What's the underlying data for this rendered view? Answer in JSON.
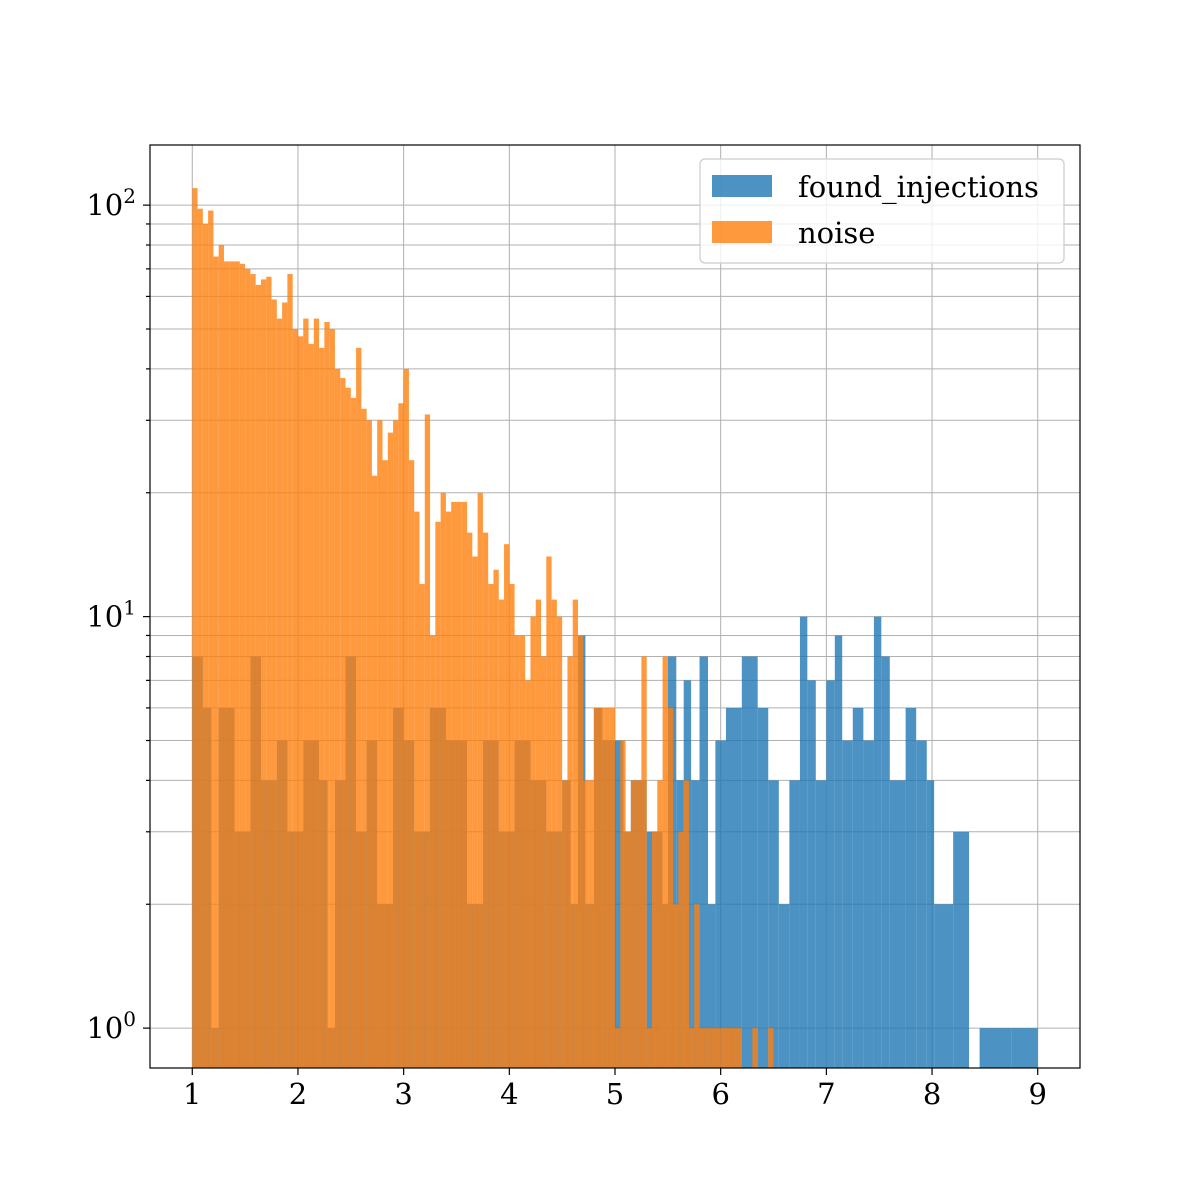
{
  "chart_data": {
    "type": "histogram",
    "x_scale": "linear",
    "y_scale": "log",
    "xlim": [
      0.6,
      9.4
    ],
    "ylim": [
      0.8,
      140
    ],
    "grid": true,
    "legend_position": "top-right",
    "x_ticks": [
      "1",
      "2",
      "3",
      "4",
      "5",
      "6",
      "7",
      "8",
      "9"
    ],
    "y_ticks": [
      {
        "base": "10",
        "exp": "0",
        "value": 1
      },
      {
        "base": "10",
        "exp": "1",
        "value": 10
      },
      {
        "base": "10",
        "exp": "2",
        "value": 100
      }
    ],
    "series": [
      {
        "name": "found_injections",
        "color": "#1f77b4",
        "alpha": 0.8,
        "bins": [
          [
            1.0,
            1.1,
            8
          ],
          [
            1.1,
            1.18,
            6
          ],
          [
            1.18,
            1.25,
            1
          ],
          [
            1.25,
            1.4,
            6
          ],
          [
            1.4,
            1.55,
            3
          ],
          [
            1.55,
            1.65,
            8
          ],
          [
            1.65,
            1.8,
            4
          ],
          [
            1.8,
            1.9,
            5
          ],
          [
            1.9,
            2.05,
            3
          ],
          [
            2.05,
            2.2,
            5
          ],
          [
            2.2,
            2.28,
            4
          ],
          [
            2.28,
            2.35,
            1
          ],
          [
            2.35,
            2.45,
            4
          ],
          [
            2.45,
            2.55,
            8
          ],
          [
            2.55,
            2.65,
            3
          ],
          [
            2.65,
            2.75,
            5
          ],
          [
            2.75,
            2.9,
            2
          ],
          [
            2.9,
            3.0,
            6
          ],
          [
            3.0,
            3.1,
            5
          ],
          [
            3.1,
            3.25,
            3
          ],
          [
            3.25,
            3.4,
            6
          ],
          [
            3.4,
            3.6,
            5
          ],
          [
            3.6,
            3.75,
            2
          ],
          [
            3.75,
            3.9,
            5
          ],
          [
            3.9,
            4.05,
            3
          ],
          [
            4.05,
            4.2,
            5
          ],
          [
            4.2,
            4.35,
            4
          ],
          [
            4.35,
            4.5,
            3
          ],
          [
            4.5,
            4.58,
            4
          ],
          [
            4.58,
            4.65,
            2
          ],
          [
            4.65,
            4.72,
            9
          ],
          [
            4.72,
            4.8,
            2
          ],
          [
            4.8,
            4.88,
            6
          ],
          [
            4.88,
            5.0,
            5
          ],
          [
            5.0,
            5.08,
            5
          ],
          [
            5.08,
            5.15,
            3
          ],
          [
            5.15,
            5.3,
            4
          ],
          [
            5.3,
            5.37,
            3
          ],
          [
            5.37,
            5.45,
            3
          ],
          [
            5.45,
            5.5,
            2
          ],
          [
            5.5,
            5.58,
            8
          ],
          [
            5.58,
            5.65,
            4
          ],
          [
            5.65,
            5.72,
            7
          ],
          [
            5.72,
            5.8,
            4
          ],
          [
            5.8,
            5.88,
            8
          ],
          [
            5.88,
            5.95,
            2
          ],
          [
            5.95,
            6.05,
            5
          ],
          [
            6.05,
            6.2,
            6
          ],
          [
            6.2,
            6.35,
            8
          ],
          [
            6.35,
            6.45,
            6
          ],
          [
            6.45,
            6.55,
            4
          ],
          [
            6.55,
            6.65,
            2
          ],
          [
            6.65,
            6.75,
            4
          ],
          [
            6.75,
            6.82,
            10
          ],
          [
            6.82,
            6.9,
            7
          ],
          [
            6.9,
            7.0,
            4
          ],
          [
            7.0,
            7.08,
            7
          ],
          [
            7.08,
            7.15,
            9
          ],
          [
            7.15,
            7.25,
            5
          ],
          [
            7.25,
            7.35,
            6
          ],
          [
            7.35,
            7.45,
            5
          ],
          [
            7.45,
            7.52,
            10
          ],
          [
            7.52,
            7.6,
            8
          ],
          [
            7.6,
            7.75,
            4
          ],
          [
            7.75,
            7.85,
            6
          ],
          [
            7.85,
            7.95,
            5
          ],
          [
            7.95,
            8.02,
            4
          ],
          [
            8.02,
            8.2,
            2
          ],
          [
            8.2,
            8.35,
            3
          ],
          [
            8.45,
            8.75,
            1
          ],
          [
            8.75,
            9.0,
            1
          ]
        ]
      },
      {
        "name": "noise",
        "color": "#ff7f0e",
        "alpha": 0.8,
        "bins": [
          [
            1.0,
            1.05,
            110
          ],
          [
            1.05,
            1.1,
            98
          ],
          [
            1.1,
            1.15,
            90
          ],
          [
            1.15,
            1.2,
            97
          ],
          [
            1.2,
            1.25,
            75
          ],
          [
            1.25,
            1.3,
            80
          ],
          [
            1.3,
            1.35,
            73
          ],
          [
            1.35,
            1.45,
            73
          ],
          [
            1.45,
            1.5,
            72
          ],
          [
            1.5,
            1.55,
            70
          ],
          [
            1.55,
            1.6,
            68
          ],
          [
            1.6,
            1.65,
            64
          ],
          [
            1.65,
            1.7,
            66
          ],
          [
            1.7,
            1.75,
            67
          ],
          [
            1.75,
            1.8,
            59
          ],
          [
            1.8,
            1.85,
            53
          ],
          [
            1.85,
            1.9,
            58
          ],
          [
            1.9,
            1.95,
            68
          ],
          [
            1.95,
            2.0,
            50
          ],
          [
            2.0,
            2.05,
            48
          ],
          [
            2.05,
            2.1,
            53
          ],
          [
            2.1,
            2.15,
            46
          ],
          [
            2.15,
            2.2,
            53
          ],
          [
            2.2,
            2.25,
            45
          ],
          [
            2.25,
            2.3,
            52
          ],
          [
            2.3,
            2.35,
            50
          ],
          [
            2.35,
            2.4,
            40
          ],
          [
            2.4,
            2.45,
            38
          ],
          [
            2.45,
            2.5,
            36
          ],
          [
            2.5,
            2.55,
            34
          ],
          [
            2.55,
            2.6,
            45
          ],
          [
            2.6,
            2.65,
            32
          ],
          [
            2.65,
            2.7,
            30
          ],
          [
            2.7,
            2.75,
            22
          ],
          [
            2.75,
            2.8,
            30
          ],
          [
            2.8,
            2.85,
            24
          ],
          [
            2.85,
            2.9,
            28
          ],
          [
            2.9,
            2.95,
            30
          ],
          [
            2.95,
            3.0,
            33
          ],
          [
            3.0,
            3.05,
            40
          ],
          [
            3.05,
            3.1,
            24
          ],
          [
            3.1,
            3.15,
            18
          ],
          [
            3.15,
            3.2,
            12
          ],
          [
            3.2,
            3.25,
            31
          ],
          [
            3.25,
            3.3,
            9
          ],
          [
            3.3,
            3.35,
            17
          ],
          [
            3.35,
            3.4,
            20
          ],
          [
            3.4,
            3.45,
            18
          ],
          [
            3.45,
            3.5,
            19
          ],
          [
            3.5,
            3.55,
            19
          ],
          [
            3.55,
            3.6,
            19
          ],
          [
            3.6,
            3.65,
            16
          ],
          [
            3.65,
            3.7,
            14
          ],
          [
            3.7,
            3.75,
            20
          ],
          [
            3.75,
            3.8,
            16
          ],
          [
            3.8,
            3.85,
            12
          ],
          [
            3.85,
            3.9,
            13
          ],
          [
            3.9,
            3.95,
            11
          ],
          [
            3.95,
            4.0,
            15
          ],
          [
            4.0,
            4.05,
            12
          ],
          [
            4.05,
            4.1,
            9
          ],
          [
            4.1,
            4.15,
            9
          ],
          [
            4.15,
            4.2,
            7
          ],
          [
            4.2,
            4.25,
            10
          ],
          [
            4.25,
            4.3,
            11
          ],
          [
            4.3,
            4.35,
            8
          ],
          [
            4.35,
            4.4,
            14
          ],
          [
            4.4,
            4.45,
            11
          ],
          [
            4.45,
            4.5,
            10
          ],
          [
            4.5,
            4.55,
            4
          ],
          [
            4.55,
            4.6,
            8
          ],
          [
            4.6,
            4.65,
            11
          ],
          [
            4.65,
            4.7,
            9
          ],
          [
            4.7,
            4.75,
            4
          ],
          [
            4.75,
            4.8,
            4
          ],
          [
            4.8,
            4.85,
            6
          ],
          [
            4.85,
            4.9,
            6
          ],
          [
            4.9,
            4.95,
            6
          ],
          [
            4.95,
            5.0,
            6
          ],
          [
            5.0,
            5.05,
            1
          ],
          [
            5.05,
            5.1,
            5
          ],
          [
            5.1,
            5.15,
            3
          ],
          [
            5.15,
            5.2,
            4
          ],
          [
            5.2,
            5.25,
            4
          ],
          [
            5.25,
            5.3,
            8
          ],
          [
            5.3,
            5.35,
            1
          ],
          [
            5.35,
            5.4,
            3
          ],
          [
            5.4,
            5.45,
            4
          ],
          [
            5.45,
            5.5,
            8
          ],
          [
            5.5,
            5.55,
            6
          ],
          [
            5.55,
            5.6,
            2
          ],
          [
            5.6,
            5.65,
            3
          ],
          [
            5.65,
            5.7,
            4
          ],
          [
            5.7,
            5.75,
            1
          ],
          [
            5.75,
            5.8,
            2
          ],
          [
            5.8,
            5.85,
            1
          ],
          [
            5.85,
            5.9,
            1
          ],
          [
            5.9,
            5.95,
            1
          ],
          [
            5.95,
            6.0,
            1
          ],
          [
            6.0,
            6.05,
            1
          ],
          [
            6.05,
            6.1,
            1
          ],
          [
            6.1,
            6.15,
            1
          ],
          [
            6.15,
            6.2,
            1
          ],
          [
            6.3,
            6.35,
            1
          ],
          [
            6.45,
            6.5,
            1
          ]
        ]
      }
    ]
  }
}
